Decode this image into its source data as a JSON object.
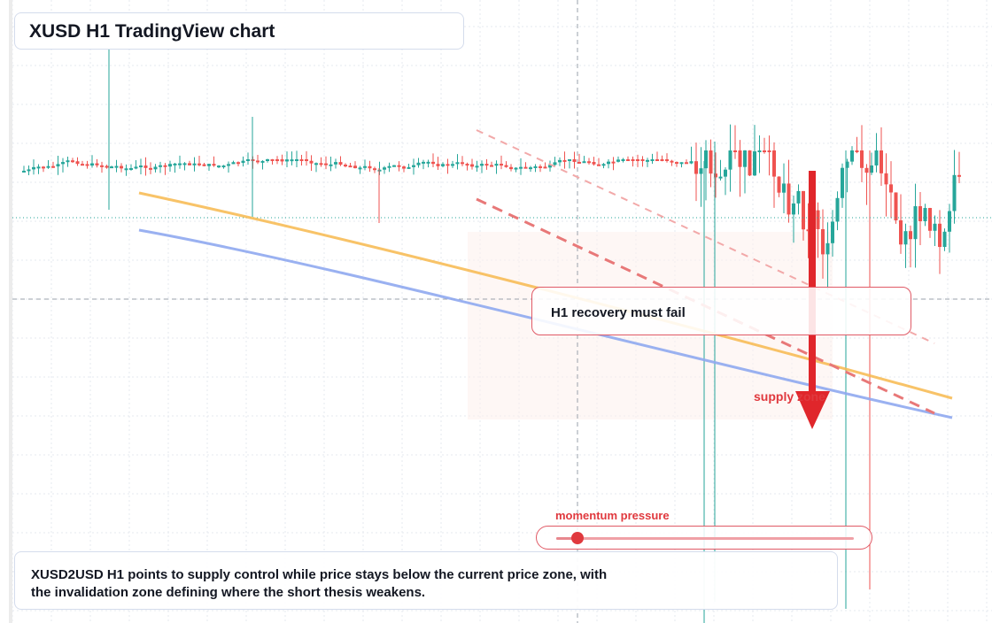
{
  "header": {
    "title": "XUSD H1 TradingView chart"
  },
  "annotations": {
    "callout": "H1 recovery must fail",
    "supply_label": "supply zone",
    "momentum_label": "momentum pressure"
  },
  "momentum": {
    "level": 0.07
  },
  "summary": {
    "line1": "XUSD2USD H1 points to supply control while price stays below the current price zone, with",
    "line2": "the invalidation zone defining where the short thesis weakens."
  },
  "colors": {
    "up": "#26a69a",
    "down": "#ef5350",
    "ma_fast": "#f7b84e",
    "ma_slow": "#8fa8ef",
    "arrow": "#e0262b",
    "trend_dashed": "#e87878",
    "grid": "#e6e9ef"
  },
  "chart_data": {
    "type": "candlestick",
    "title": "XUSD H1 TradingView chart",
    "grid": true,
    "current_price_line": true,
    "overlays": [
      "moving average (orange)",
      "moving average (blue)",
      "dashed trendlines (red)",
      "bearish arrow (red)"
    ]
  }
}
